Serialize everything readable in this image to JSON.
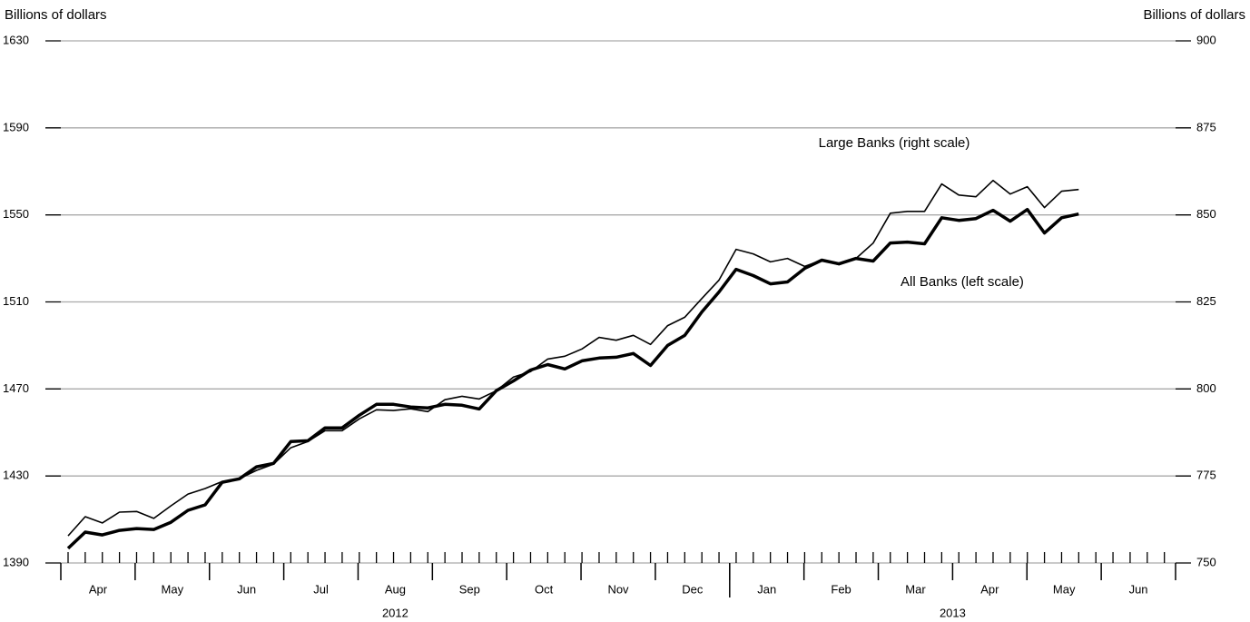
{
  "chart_data": {
    "type": "line",
    "y_label": "Billions of dollars",
    "y2_label": "Billions of dollars",
    "months": [
      "Apr",
      "May",
      "Jun",
      "Jul",
      "Aug",
      "Sep",
      "Oct",
      "Nov",
      "Dec",
      "Jan",
      "Feb",
      "Mar",
      "Apr",
      "May",
      "Jun"
    ],
    "years": [
      "2012",
      "2013"
    ],
    "ylim": [
      1390,
      1630
    ],
    "yticks": [
      1390,
      1430,
      1470,
      1510,
      1550,
      1590,
      1630
    ],
    "y2lim": [
      750,
      900
    ],
    "y2ticks": [
      750,
      775,
      800,
      825,
      850,
      875,
      900
    ],
    "grid": true,
    "annotations": [
      "Large Banks (right scale)",
      "All Banks (left scale)"
    ],
    "series": [
      {
        "name": "All Banks",
        "color": "#000000",
        "axis": "y",
        "values": [
          1396.7,
          1404.2,
          1402.9,
          1405,
          1405.8,
          1405.4,
          1408.7,
          1414.2,
          1416.7,
          1427.1,
          1428.7,
          1434.2,
          1435.8,
          1445.8,
          1446.2,
          1452.1,
          1452.1,
          1457.9,
          1462.9,
          1462.9,
          1461.7,
          1461.3,
          1462.9,
          1462.5,
          1460.8,
          1469.2,
          1473.7,
          1478.7,
          1481.2,
          1479.2,
          1482.9,
          1484.2,
          1484.6,
          1486.3,
          1480.8,
          1490,
          1494.6,
          1505.4,
          1514.6,
          1525,
          1522.1,
          1518.3,
          1519.2,
          1525.4,
          1529.2,
          1527.5,
          1530,
          1528.8,
          1537.1,
          1537.5,
          1536.7,
          1548.7,
          1547.5,
          1548.3,
          1552.1,
          1547.1,
          1552.5,
          1541.7,
          1548.7,
          1550.4
        ]
      },
      {
        "name": "Large Banks",
        "color": "#000000",
        "axis": "y2",
        "values": [
          757.8,
          763.3,
          761.5,
          764.6,
          764.8,
          762.8,
          766.4,
          769.8,
          771.4,
          773.4,
          774.2,
          776.6,
          778.4,
          783.1,
          784.9,
          788,
          788,
          791.4,
          794,
          793.8,
          794.3,
          793.5,
          796.9,
          797.9,
          797.1,
          799.5,
          803.4,
          805,
          808.6,
          809.4,
          811.5,
          814.8,
          814,
          815.4,
          812.8,
          818.2,
          820.6,
          826,
          831.3,
          840.1,
          838.8,
          836.5,
          837.5,
          835.2,
          837,
          835.7,
          837.5,
          841.9,
          850.5,
          851,
          851,
          858.9,
          855.7,
          855.2,
          859.9,
          856,
          858.1,
          852.1,
          856.8,
          857.3
        ]
      }
    ]
  }
}
